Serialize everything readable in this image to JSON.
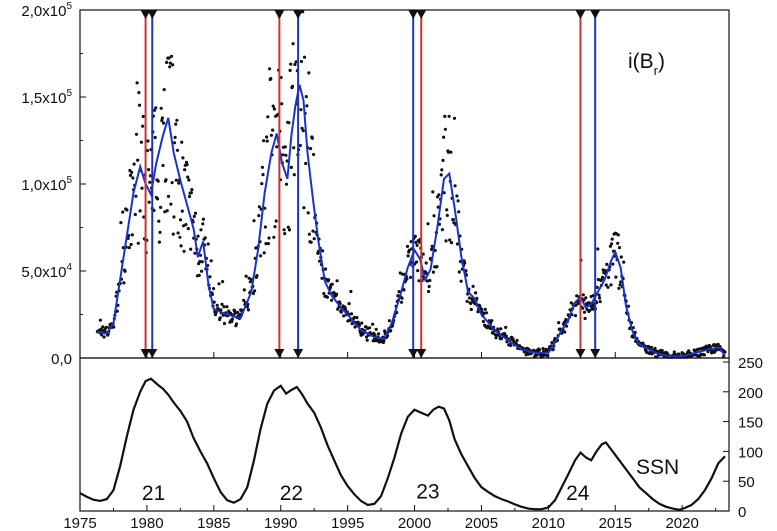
{
  "chart_data": [
    {
      "type": "scatter",
      "title": "",
      "label": "i(B_r)",
      "label_main": "i(B",
      "label_sub": "r",
      "label_close": ")",
      "xlim": [
        1975,
        2023.5
      ],
      "ylim": [
        0,
        200000
      ],
      "y_ticks": [
        {
          "value": 0,
          "label": "0,0"
        },
        {
          "value": 50000,
          "label": "5,0x10",
          "exp": "4"
        },
        {
          "value": 100000,
          "label": "1,0x10",
          "exp": "5"
        },
        {
          "value": 150000,
          "label": "1,5x10",
          "exp": "5"
        },
        {
          "value": 200000,
          "label": "2,0x10",
          "exp": "5"
        }
      ],
      "series": [
        {
          "style": "smoothed line",
          "color": "#1a33cc",
          "x": [
            1976.3,
            1977.0,
            1977.5,
            1978.0,
            1978.5,
            1979.0,
            1979.5,
            1979.9,
            1980.3,
            1980.7,
            1981.2,
            1981.6,
            1982.0,
            1982.5,
            1983.0,
            1983.5,
            1983.8,
            1984.2,
            1984.6,
            1985.0,
            1986.0,
            1987.0,
            1987.8,
            1988.3,
            1988.8,
            1989.3,
            1989.7,
            1990.1,
            1990.5,
            1990.8,
            1991.1,
            1991.4,
            1991.7,
            1992.0,
            1992.4,
            1992.8,
            1993.3,
            1993.8,
            1994.5,
            1995.0,
            1996.0,
            1997.0,
            1997.7,
            1998.3,
            1999.0,
            1999.5,
            2000.0,
            2000.4,
            2000.8,
            2001.2,
            2001.7,
            2002.2,
            2002.6,
            2003.0,
            2003.5,
            2004.0,
            2004.5,
            2005.0,
            2006.0,
            2007.0,
            2008.0,
            2009.0,
            2010.0,
            2010.5,
            2011.0,
            2011.5,
            2012.0,
            2012.4,
            2012.8,
            2013.2,
            2013.7,
            2014.2,
            2014.7,
            2015.0,
            2015.4,
            2015.8,
            2016.3,
            2016.8,
            2017.5,
            2018.0,
            2019.0,
            2020.0,
            2021.0,
            2022.0,
            2022.8,
            2023.2
          ],
          "y": [
            15000,
            14000,
            20000,
            45000,
            70000,
            95000,
            110000,
            100000,
            94000,
            112000,
            128000,
            138000,
            118000,
            102000,
            88000,
            74000,
            58000,
            67000,
            42000,
            28000,
            25000,
            23000,
            38000,
            62000,
            95000,
            118000,
            129000,
            112000,
            103000,
            128000,
            145000,
            157000,
            148000,
            118000,
            92000,
            68000,
            44000,
            36000,
            29000,
            25000,
            16000,
            12000,
            11000,
            20000,
            38000,
            52000,
            62000,
            57000,
            45000,
            51000,
            75000,
            103000,
            106000,
            86000,
            58000,
            38000,
            34000,
            25000,
            16000,
            10000,
            5000,
            3000,
            3000,
            9000,
            16000,
            22000,
            32000,
            35000,
            29000,
            31000,
            38000,
            45000,
            56000,
            61000,
            52000,
            30000,
            15000,
            8000,
            5000,
            3000,
            1000,
            1000,
            3000,
            5000,
            6000,
            1000
          ]
        }
      ],
      "vertical_markers": [
        {
          "x": 1979.9,
          "color": "#cc3333"
        },
        {
          "x": 1980.4,
          "color": "#2233bb"
        },
        {
          "x": 1989.9,
          "color": "#cc3333"
        },
        {
          "x": 1991.3,
          "color": "#2233bb"
        },
        {
          "x": 1999.9,
          "color": "#2233bb"
        },
        {
          "x": 2000.5,
          "color": "#cc3333"
        },
        {
          "x": 2012.4,
          "color": "#cc3333"
        },
        {
          "x": 2013.5,
          "color": "#2233bb"
        }
      ]
    },
    {
      "type": "line",
      "title": "",
      "label": "SSN",
      "xlim": [
        1975,
        2023.5
      ],
      "ylim": [
        0,
        250
      ],
      "y_ticks": [
        0,
        50,
        100,
        150,
        200,
        250
      ],
      "x_ticks": [
        1975,
        1980,
        1985,
        1990,
        1995,
        2000,
        2005,
        2010,
        2015,
        2020
      ],
      "cycle_labels": [
        {
          "x": 1980.5,
          "y": 72,
          "text": "21"
        },
        {
          "x": 1990.8,
          "y": 72,
          "text": "22"
        },
        {
          "x": 2001.0,
          "y": 75,
          "text": "23"
        },
        {
          "x": 2012.2,
          "y": 72,
          "text": "24"
        }
      ],
      "series": [
        {
          "color": "#111111",
          "x": [
            1975.0,
            1975.5,
            1976.0,
            1976.5,
            1977.0,
            1977.5,
            1978.0,
            1978.5,
            1979.0,
            1979.5,
            1979.9,
            1980.3,
            1980.8,
            1981.2,
            1981.6,
            1982.0,
            1982.5,
            1983.0,
            1983.5,
            1984.0,
            1984.5,
            1985.0,
            1985.5,
            1986.0,
            1986.5,
            1987.0,
            1987.5,
            1988.0,
            1988.5,
            1989.0,
            1989.5,
            1990.0,
            1990.4,
            1990.8,
            1991.2,
            1991.6,
            1992.0,
            1992.5,
            1993.0,
            1993.5,
            1994.0,
            1994.5,
            1995.0,
            1995.5,
            1996.0,
            1996.5,
            1997.0,
            1997.5,
            1998.0,
            1998.5,
            1999.0,
            1999.5,
            2000.0,
            2000.5,
            2001.0,
            2001.4,
            2001.8,
            2002.2,
            2002.6,
            2003.0,
            2003.5,
            2004.0,
            2004.5,
            2005.0,
            2005.5,
            2006.0,
            2006.5,
            2007.0,
            2007.5,
            2008.0,
            2008.5,
            2009.0,
            2009.5,
            2010.0,
            2010.5,
            2011.0,
            2011.5,
            2012.0,
            2012.4,
            2012.8,
            2013.2,
            2013.6,
            2014.0,
            2014.3,
            2014.8,
            2015.3,
            2015.8,
            2016.3,
            2016.8,
            2017.3,
            2017.8,
            2018.3,
            2018.8,
            2019.3,
            2019.8,
            2020.2,
            2020.7,
            2021.2,
            2021.7,
            2022.2,
            2022.7,
            2023.2
          ],
          "y": [
            30,
            24,
            19,
            17,
            20,
            35,
            75,
            125,
            170,
            200,
            218,
            222,
            212,
            205,
            195,
            182,
            168,
            150,
            122,
            100,
            80,
            55,
            32,
            18,
            14,
            20,
            40,
            85,
            138,
            180,
            202,
            210,
            197,
            203,
            208,
            196,
            180,
            165,
            140,
            110,
            85,
            60,
            42,
            28,
            17,
            10,
            12,
            25,
            55,
            90,
            130,
            158,
            170,
            165,
            160,
            170,
            175,
            172,
            152,
            120,
            95,
            75,
            55,
            40,
            32,
            25,
            20,
            16,
            11,
            7,
            4,
            3,
            3,
            6,
            18,
            40,
            62,
            85,
            98,
            90,
            85,
            100,
            112,
            115,
            100,
            85,
            70,
            55,
            40,
            30,
            20,
            12,
            7,
            4,
            2,
            5,
            10,
            20,
            35,
            55,
            80,
            92
          ]
        }
      ]
    }
  ]
}
